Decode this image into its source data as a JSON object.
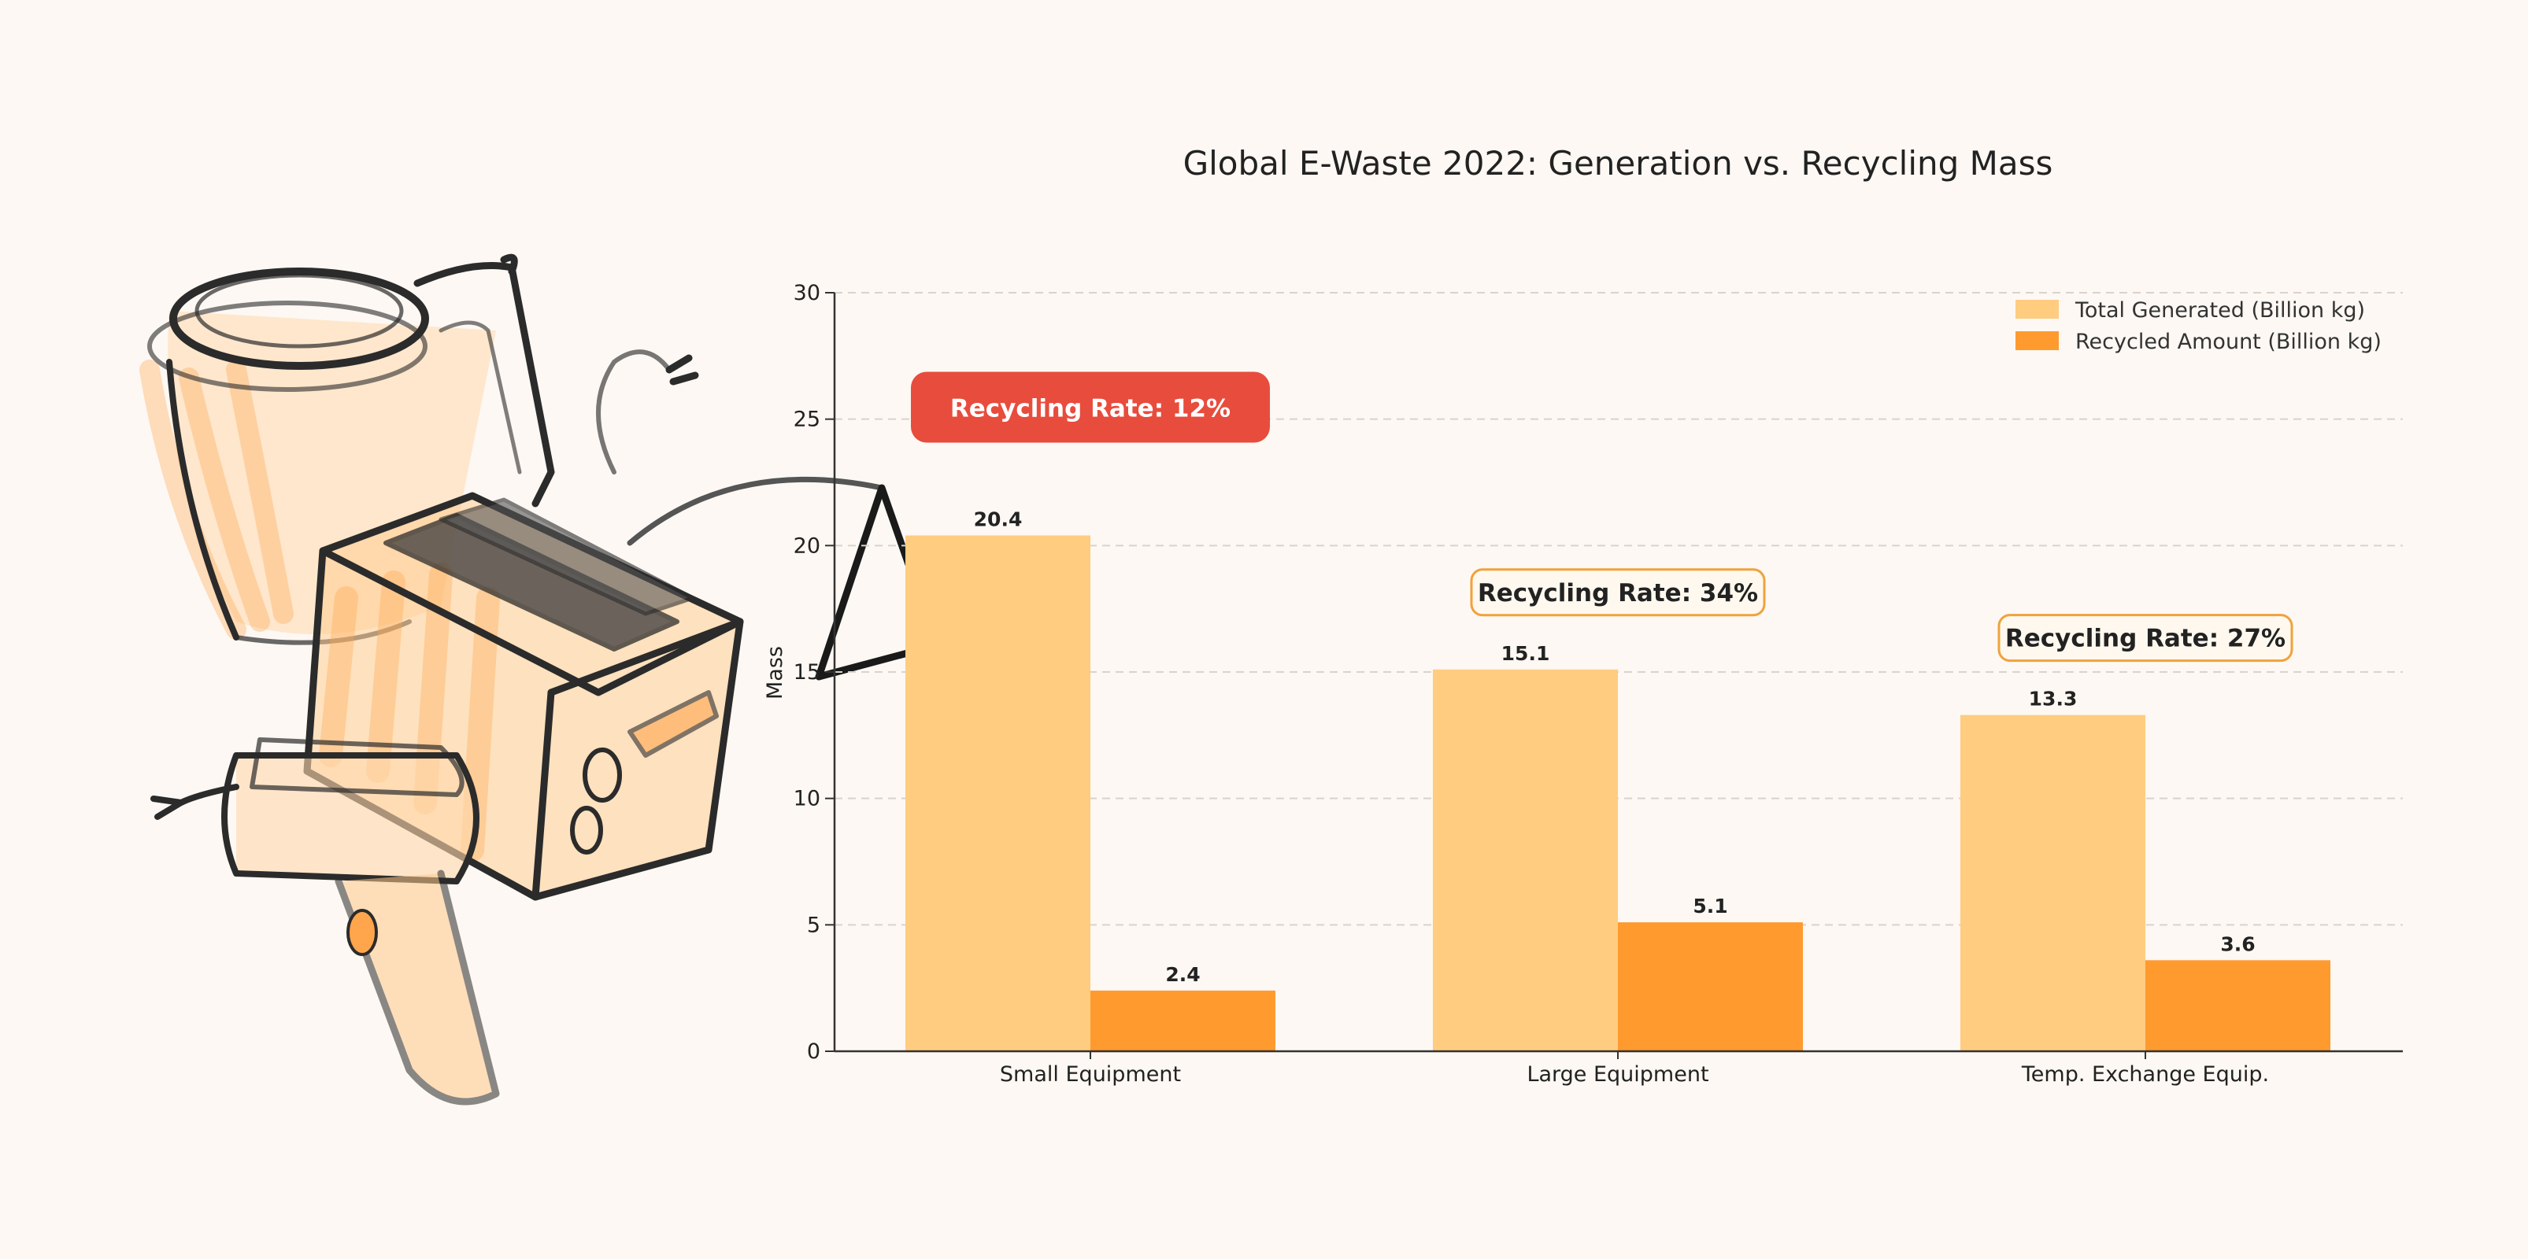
{
  "chart_data": {
    "type": "bar",
    "title": "Global E-Waste 2022: Generation vs. Recycling Mass",
    "ylabel": "Mass",
    "xlabel": "",
    "ylim": [
      0,
      30
    ],
    "yticks": [
      0,
      5,
      10,
      15,
      20,
      25,
      30
    ],
    "grid": true,
    "legend_position": "top-right",
    "categories": [
      "Small Equipment",
      "Large Equipment",
      "Temp. Exchange Equip."
    ],
    "series": [
      {
        "name": "Total Generated (Billion kg)",
        "values": [
          20.4,
          15.1,
          13.3
        ],
        "labels": [
          "20.4",
          "15.1",
          "13.3"
        ],
        "color": "#ffcc80"
      },
      {
        "name": "Recycled Amount (Billion kg)",
        "values": [
          2.4,
          5.1,
          3.6
        ],
        "labels": [
          "2.4",
          "5.1",
          "3.6"
        ],
        "color": "#ff9a2f"
      }
    ],
    "annotations": [
      {
        "category": "Small Equipment",
        "text": "Recycling Rate: 12%",
        "style": "highlight",
        "fill": "#e84c3d",
        "text_color": "#ffffff"
      },
      {
        "category": "Large Equipment",
        "text": "Recycling Rate: 34%",
        "style": "outline",
        "fill": "#fff8ee",
        "border": "#f0a23c",
        "text_color": "#222222"
      },
      {
        "category": "Temp. Exchange Equip.",
        "text": "Recycling Rate: 27%",
        "style": "outline",
        "fill": "#fff8ee",
        "border": "#f0a23c",
        "text_color": "#222222"
      }
    ]
  },
  "illustration": {
    "subject": "sketch of kettle, toaster and hair dryer",
    "accent_color": "#ffa64d",
    "ink_color": "#2b2b2b"
  }
}
